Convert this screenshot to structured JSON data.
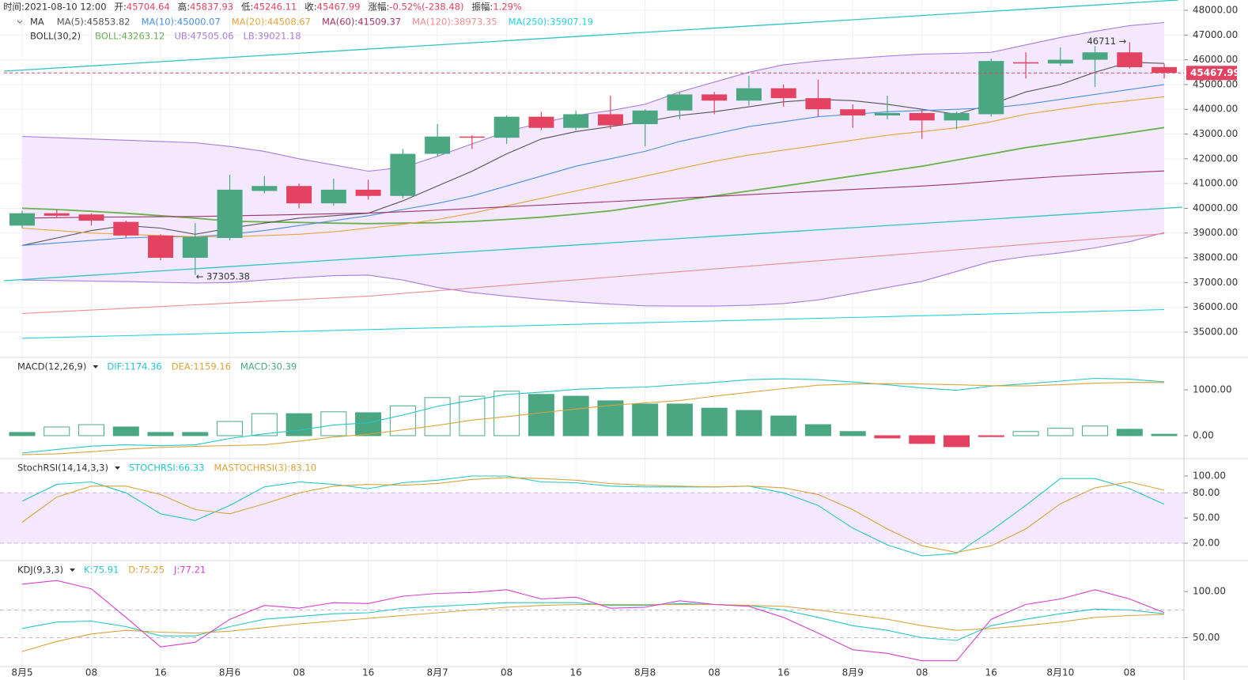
{
  "info": [
    {
      "label": "时间:",
      "value": "2021-08-10 12:00"
    },
    {
      "label": "开:",
      "value": "45704.64"
    },
    {
      "label": "高:",
      "value": "45837.93"
    },
    {
      "label": "低:",
      "value": "45246.11"
    },
    {
      "label": "收:",
      "value": "45467.99"
    },
    {
      "label": "涨幅:",
      "value": "-0.52%(-238.48)"
    },
    {
      "label": "振幅:",
      "value": "1.29%"
    }
  ],
  "chart_data": [
    {
      "type": "candlestick",
      "up_color": "#4aa782",
      "down_color": "#e34360",
      "grid": true,
      "categories": [
        "8月5",
        null,
        "08",
        null,
        "16",
        null,
        "8月6",
        null,
        "08",
        null,
        "16",
        null,
        "8月7",
        null,
        "08",
        null,
        "16",
        null,
        "8月8",
        null,
        "08",
        null,
        "16",
        null,
        "8月9",
        null,
        "08",
        null,
        "16",
        null,
        "8月10",
        null,
        "08",
        null
      ],
      "candles": {
        "open": [
          39300,
          39800,
          39750,
          39450,
          38900,
          38000,
          38800,
          40700,
          40900,
          40200,
          40750,
          40500,
          42200,
          42900,
          42850,
          43700,
          43250,
          43800,
          43400,
          43950,
          44600,
          44350,
          44850,
          44450,
          44000,
          43750,
          43850,
          43550,
          43800,
          45900,
          45850,
          46000,
          46300,
          45704.64
        ],
        "high": [
          39900,
          39950,
          39800,
          39500,
          38950,
          39400,
          41350,
          41300,
          41000,
          41200,
          41150,
          42400,
          43400,
          42950,
          43750,
          43900,
          43950,
          44550,
          44000,
          44700,
          44700,
          45350,
          45000,
          45200,
          44200,
          44550,
          44000,
          43900,
          46050,
          46300,
          46500,
          46550,
          46711,
          45837.93
        ],
        "low": [
          39200,
          39650,
          39300,
          38800,
          37900,
          37305.38,
          38700,
          40600,
          40000,
          40100,
          40350,
          40400,
          42100,
          42400,
          42600,
          43150,
          43150,
          43200,
          42500,
          43600,
          43800,
          44150,
          44100,
          43700,
          43250,
          43600,
          42800,
          43200,
          43700,
          45250,
          45750,
          44900,
          45650,
          45246.11
        ],
        "close": [
          39800,
          39700,
          39500,
          38900,
          38000,
          38850,
          40750,
          40900,
          40200,
          40750,
          40500,
          42200,
          42900,
          42850,
          43700,
          43250,
          43800,
          43350,
          43950,
          44600,
          44350,
          44850,
          44450,
          44000,
          43750,
          43850,
          43550,
          43850,
          45950,
          45850,
          46000,
          46300,
          45700,
          45467.99
        ]
      },
      "annotations": [
        "46711 →",
        "← 37305.38"
      ],
      "ylim": [
        34040,
        48415
      ],
      "yticks": [
        {
          "value": 48000,
          "label": "48000.00"
        },
        {
          "value": 47000,
          "label": "47000.00"
        },
        {
          "value": 46000,
          "label": "46000.00"
        },
        {
          "value": 45000,
          "label": "45000.00"
        },
        {
          "value": 44000,
          "label": "44000.00"
        },
        {
          "value": 43000,
          "label": "43000.00"
        },
        {
          "value": 42000,
          "label": "42000.00"
        },
        {
          "value": 41000,
          "label": "41000.00"
        },
        {
          "value": 40000,
          "label": "40000.00"
        },
        {
          "value": 39000,
          "label": "39000.00"
        },
        {
          "value": 38000,
          "label": "38000.00"
        },
        {
          "value": 37000,
          "label": "37000.00"
        },
        {
          "value": 36000,
          "label": "36000.00"
        },
        {
          "value": 35000,
          "label": "35000.00"
        }
      ],
      "ma": {
        "title": "MA",
        "series": [
          {
            "name": "MA(5):45853.82",
            "color": "#555555",
            "values": [
              38500,
              38800,
              39100,
              39300,
              39200,
              38950,
              39200,
              39400,
              39600,
              39700,
              39800,
              40300,
              40900,
              41500,
              42200,
              42800,
              43100,
              43300,
              43500,
              43750,
              43900,
              44100,
              44300,
              44400,
              44350,
              44200,
              44000,
              43800,
              44200,
              44700,
              45000,
              45500,
              45900,
              45853.82
            ]
          },
          {
            "name": "MA(10):45000.07",
            "color": "#4a90e2",
            "values": [
              38500,
              38600,
              38700,
              38800,
              38850,
              38850,
              38950,
              39100,
              39300,
              39500,
              39700,
              39950,
              40200,
              40500,
              40900,
              41300,
              41700,
              42000,
              42300,
              42700,
              43000,
              43300,
              43500,
              43700,
              43800,
              43900,
              43950,
              44000,
              44050,
              44200,
              44400,
              44600,
              44800,
              45000.07
            ]
          },
          {
            "name": "MA(20):44508.67",
            "color": "#e8a33a",
            "values": [
              39200,
              39100,
              39000,
              38950,
              38900,
              38850,
              38850,
              38900,
              38950,
              39050,
              39200,
              39350,
              39550,
              39800,
              40100,
              40400,
              40700,
              41000,
              41300,
              41600,
              41900,
              42150,
              42350,
              42550,
              42750,
              42950,
              43100,
              43250,
              43500,
              43800,
              44000,
              44200,
              44350,
              44508.67
            ]
          },
          {
            "name": "MA(60):41509.37",
            "color": "#a0336b",
            "values": [
              39600,
              39620,
              39640,
              39650,
              39660,
              39670,
              39690,
              39720,
              39750,
              39780,
              39810,
              39860,
              39920,
              39990,
              40060,
              40130,
              40200,
              40270,
              40340,
              40410,
              40480,
              40550,
              40620,
              40690,
              40760,
              40830,
              40900,
              40980,
              41090,
              41200,
              41290,
              41370,
              41440,
              41509.37
            ]
          },
          {
            "name": "MA(120):38973.35",
            "color": "#f08c8c",
            "values": [
              35750,
              35820,
              35890,
              35960,
              36030,
              36100,
              36170,
              36240,
              36310,
              36380,
              36450,
              36560,
              36670,
              36780,
              36890,
              37000,
              37110,
              37220,
              37330,
              37440,
              37550,
              37660,
              37770,
              37880,
              37990,
              38100,
              38210,
              38320,
              38430,
              38540,
              38650,
              38760,
              38870,
              38973.35
            ]
          },
          {
            "name": "MA(250):35907.19",
            "color": "#22d3de",
            "values": [
              34750,
              34785,
              34820,
              34855,
              34890,
              34925,
              34960,
              34995,
              35030,
              35065,
              35100,
              35135,
              35170,
              35205,
              35240,
              35275,
              35310,
              35345,
              35380,
              35415,
              35450,
              35485,
              35520,
              35555,
              35590,
              35625,
              35660,
              35695,
              35730,
              35765,
              35800,
              35835,
              35870,
              35907.19
            ]
          }
        ]
      },
      "boll": {
        "title": "BOLL(30,2)",
        "fill": "#f3e8fd",
        "series": [
          {
            "name": "BOLL:43263.12",
            "color": "#6ab04c",
            "values": [
              40000,
              39950,
              39880,
              39800,
              39700,
              39600,
              39480,
              39450,
              39430,
              39400,
              39380,
              39400,
              39420,
              39470,
              39550,
              39640,
              39760,
              39900,
              40100,
              40300,
              40500,
              40700,
              40900,
              41100,
              41300,
              41500,
              41700,
              41950,
              42200,
              42450,
              42650,
              42850,
              43050,
              43263.12
            ]
          },
          {
            "name": "UB:47505.06",
            "color": "#a77de0",
            "values": [
              42900,
              42850,
              42800,
              42750,
              42700,
              42650,
              42500,
              42300,
              42000,
              41750,
              41500,
              41650,
              42100,
              42600,
              43100,
              43450,
              43750,
              43950,
              44200,
              44700,
              45100,
              45500,
              45800,
              45950,
              46050,
              46150,
              46230,
              46260,
              46300,
              46600,
              46900,
              47150,
              47380,
              47505.06
            ]
          },
          {
            "name": "LB:39021.18",
            "color": "#a77de0",
            "values": [
              37100,
              37080,
              37060,
              37040,
              37010,
              36980,
              37000,
              37100,
              37200,
              37280,
              37300,
              37100,
              36800,
              36600,
              36450,
              36320,
              36220,
              36130,
              36060,
              36050,
              36050,
              36080,
              36150,
              36300,
              36550,
              36800,
              37050,
              37450,
              37850,
              38050,
              38200,
              38400,
              38650,
              39021.18
            ]
          }
        ]
      }
    },
    {
      "type": "macd",
      "title": "MACD(12,26,9)",
      "ylim": [
        -414,
        1655
      ],
      "yticks": [
        {
          "value": 1000,
          "label": "1000.00"
        },
        {
          "value": 0,
          "label": "0.00"
        }
      ],
      "series": [
        {
          "name": "DIF:1174.36",
          "color": "#26c6c6",
          "kind": "line",
          "values": [
            -380,
            -300,
            -230,
            -200,
            -220,
            -200,
            -60,
            40,
            120,
            230,
            280,
            450,
            640,
            770,
            900,
            950,
            1010,
            1040,
            1060,
            1110,
            1160,
            1220,
            1240,
            1220,
            1170,
            1110,
            1040,
            990,
            1080,
            1130,
            1190,
            1250,
            1230,
            1174.36
          ]
        },
        {
          "name": "DEA:1159.16",
          "color": "#d9a43c",
          "kind": "line",
          "values": [
            -415,
            -395,
            -350,
            -295,
            -255,
            -235,
            -215,
            -200,
            -120,
            -30,
            30,
            125,
            225,
            340,
            415,
            500,
            580,
            660,
            715,
            765,
            860,
            945,
            1025,
            1100,
            1125,
            1135,
            1125,
            1110,
            1090,
            1085,
            1110,
            1145,
            1160,
            1159.16
          ]
        },
        {
          "name": "MACD:30.39",
          "color": "#4aa782",
          "neg_color": "#e34360",
          "kind": "histogram",
          "values": [
            70,
            190,
            240,
            190,
            70,
            70,
            310,
            480,
            480,
            520,
            500,
            650,
            830,
            860,
            970,
            900,
            860,
            760,
            690,
            690,
            600,
            550,
            430,
            240,
            90,
            -50,
            -170,
            -240,
            -20,
            90,
            160,
            210,
            140,
            30.39
          ]
        }
      ]
    },
    {
      "type": "stochrsi",
      "title": "StochRSI(14,14,3,3)",
      "ylim": [
        1.2,
        117.9
      ],
      "levels": [
        80,
        20
      ],
      "band_fill": "#f3e8fd",
      "yticks": [
        {
          "value": 100,
          "label": "100.00"
        },
        {
          "value": 80,
          "label": "80.00"
        },
        {
          "value": 50,
          "label": "50.00"
        },
        {
          "value": 20,
          "label": "20.00"
        }
      ],
      "series": [
        {
          "name": "STOCHRSI:66.33",
          "color": "#26c6c6",
          "values": [
            70,
            90,
            93,
            80,
            55,
            47,
            65,
            87,
            93,
            90,
            85,
            92,
            95,
            100,
            100,
            93,
            92,
            88,
            87,
            87,
            87,
            88,
            80,
            65,
            38,
            18,
            5,
            8,
            35,
            65,
            97,
            97,
            85,
            66.33
          ]
        },
        {
          "name": "MASTOCHRSI(3):83.10",
          "color": "#d9a43c",
          "values": [
            45,
            75,
            88,
            88,
            78,
            60,
            55,
            67,
            80,
            88,
            90,
            89,
            91,
            96,
            98,
            97,
            95,
            91,
            89,
            88,
            87,
            88,
            86,
            78,
            60,
            37,
            17,
            9,
            17,
            37,
            67,
            86,
            93,
            83.1
          ]
        }
      ]
    },
    {
      "type": "kdj",
      "title": "KDJ(9,3,3)",
      "ylim": [
        17,
        131
      ],
      "levels": [
        80,
        50
      ],
      "yticks": [
        {
          "value": 100,
          "label": "100.00"
        },
        {
          "value": 50,
          "label": "50.00"
        }
      ],
      "series": [
        {
          "name": "K:75.91",
          "color": "#26c6c6",
          "values": [
            60,
            67,
            68,
            62,
            52,
            52,
            62,
            70,
            73,
            76,
            77,
            82,
            84,
            86,
            88,
            88,
            88,
            85,
            85,
            87,
            86,
            85,
            80,
            72,
            63,
            58,
            50,
            47,
            63,
            70,
            76,
            81,
            80,
            75.91
          ]
        },
        {
          "name": "D:75.25",
          "color": "#d9a43c",
          "values": [
            35,
            46,
            54,
            58,
            56,
            55,
            57,
            61,
            65,
            68,
            71,
            74,
            77,
            80,
            83,
            85,
            86,
            86,
            86,
            86,
            86,
            85,
            84,
            80,
            75,
            70,
            63,
            58,
            60,
            63,
            67,
            72,
            74,
            75.25
          ]
        },
        {
          "name": "J:77.21",
          "color": "#d63fd0",
          "values": [
            108,
            112,
            103,
            72,
            40,
            45,
            70,
            85,
            82,
            88,
            87,
            95,
            98,
            99,
            102,
            92,
            94,
            82,
            83,
            90,
            86,
            84,
            72,
            55,
            37,
            33,
            25,
            25,
            70,
            86,
            92,
            102,
            92,
            77.21
          ]
        }
      ]
    }
  ]
}
